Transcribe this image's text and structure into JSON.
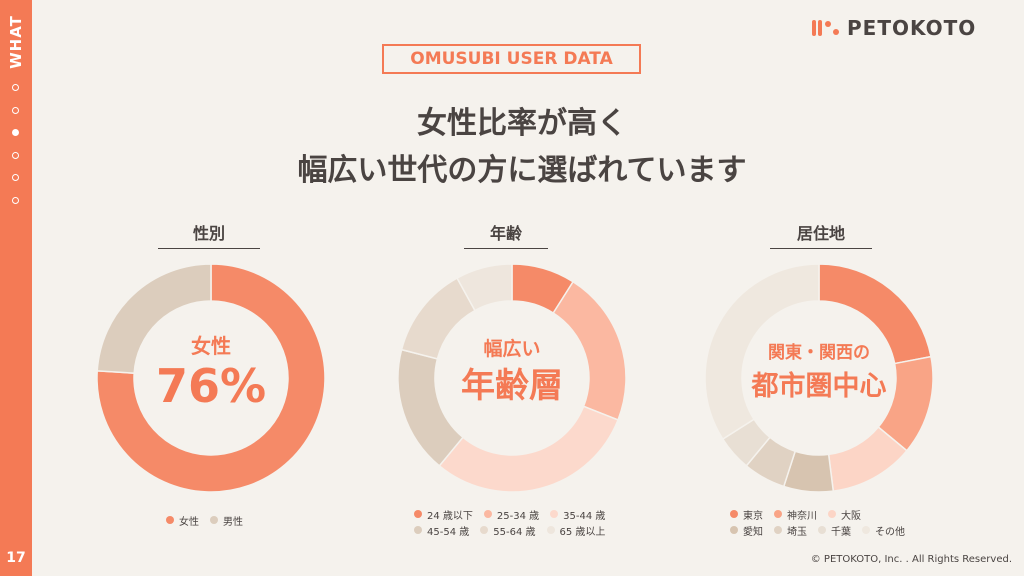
{
  "sidebar": {
    "label": "WHAT",
    "page_number": "17",
    "dots": [
      false,
      false,
      true,
      false,
      false,
      false
    ]
  },
  "logo": {
    "text": "PETOKOTO"
  },
  "badge": "OMUSUBI USER DATA",
  "headline": {
    "line1": "女性比率が高く",
    "line2": "幅広い世代の方に選ばれています"
  },
  "footer": {
    "copyright": "© PETOKOTO, Inc. . All Rights Reserved."
  },
  "chart_data": [
    {
      "type": "pie",
      "title": "性別",
      "center": {
        "sub": "女性",
        "main": "76%"
      },
      "categories": [
        "女性",
        "男性"
      ],
      "values": [
        76,
        24
      ],
      "colors": [
        "#f58a68",
        "#dccdbd"
      ],
      "legend": [
        [
          "女性",
          "男性"
        ]
      ]
    },
    {
      "type": "pie",
      "title": "年齢",
      "center": {
        "sub": "幅広い",
        "main": "年齢層"
      },
      "categories": [
        "24 歳以下",
        "25-34 歳",
        "35-44 歳",
        "45-54 歳",
        "55-64 歳",
        "65 歳以上"
      ],
      "values": [
        9,
        22,
        30,
        18,
        13,
        8
      ],
      "colors": [
        "#f58a68",
        "#fbb8a1",
        "#fcd9cc",
        "#dccdbd",
        "#e7dacd",
        "#eee6dd"
      ],
      "legend": [
        [
          "24 歳以下",
          "25-34 歳",
          "35-44 歳"
        ],
        [
          "45-54 歳",
          "55-64 歳",
          "65 歳以上"
        ]
      ]
    },
    {
      "type": "pie",
      "title": "居住地",
      "center": {
        "sub": "関東・関西の",
        "main": "都市圏中心"
      },
      "categories": [
        "東京",
        "神奈川",
        "大阪",
        "愛知",
        "埼玉",
        "千葉",
        "その他"
      ],
      "values": [
        22,
        14,
        12,
        7,
        6,
        5,
        34
      ],
      "colors": [
        "#f58a68",
        "#f9a486",
        "#fcd5c6",
        "#d7c4b0",
        "#e0d2c3",
        "#e8dfd4",
        "#efe8df"
      ],
      "legend": [
        [
          "東京",
          "神奈川",
          "大阪"
        ],
        [
          "愛知",
          "埼玉",
          "千葉",
          "その他"
        ]
      ]
    }
  ]
}
